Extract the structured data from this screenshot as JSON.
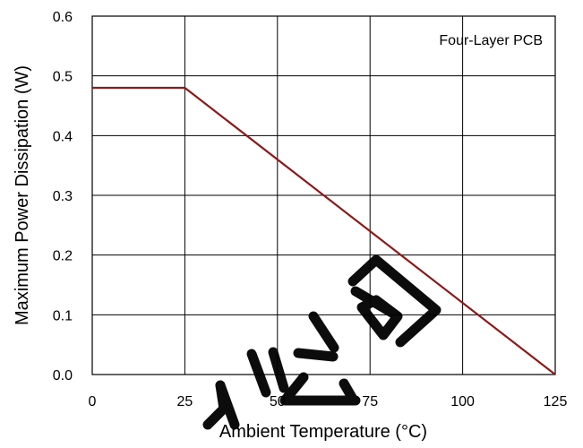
{
  "chart_data": {
    "type": "line",
    "legend_text": "Four-Layer PCB",
    "legend_placement": "top-right",
    "xlabel": "Ambient Temperature (°C)",
    "ylabel": "Maximum Power Dissipation (W)",
    "xlim": [
      0,
      125
    ],
    "ylim": [
      0,
      0.6
    ],
    "xticks": [
      "0",
      "25",
      "50",
      "75",
      "100",
      "125"
    ],
    "yticks": [
      "0.0",
      "0.1",
      "0.2",
      "0.3",
      "0.4",
      "0.5",
      "0.6"
    ],
    "grid": true,
    "series": [
      {
        "color": "#8b1a1a",
        "x": [
          0,
          25,
          125
        ],
        "y": [
          0.48,
          0.48,
          0
        ]
      }
    ],
    "watermark": "限公司"
  }
}
